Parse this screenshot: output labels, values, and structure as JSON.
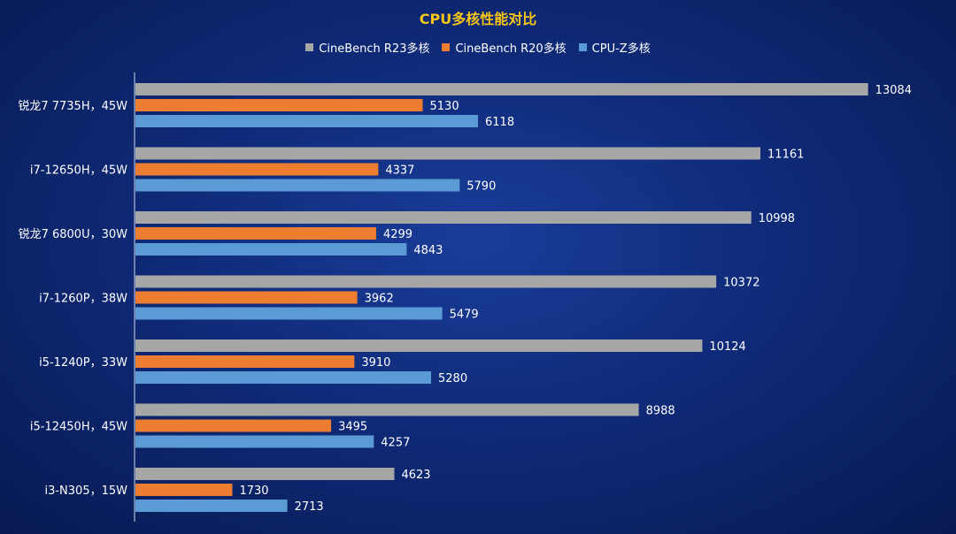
{
  "chart_data": {
    "type": "bar",
    "orientation": "horizontal",
    "title": "CPU多核性能对比",
    "categories": [
      "锐龙7 7735H，45W",
      "i7-12650H，45W",
      "锐龙7 6800U，30W",
      "i7-1260P，38W",
      "i5-1240P，33W",
      "i5-12450H，45W",
      "i3-N305，15W"
    ],
    "series": [
      {
        "name": "CineBench R23多核",
        "color": "#a6a6a6",
        "values": [
          13084,
          11161,
          10998,
          10372,
          10124,
          8988,
          4623
        ]
      },
      {
        "name": "CineBench R20多核",
        "color": "#ed7d31",
        "values": [
          5130,
          4337,
          4299,
          3962,
          3910,
          3495,
          1730
        ]
      },
      {
        "name": "CPU-Z多核",
        "color": "#5b9bd5",
        "values": [
          6118,
          5790,
          4843,
          5479,
          5280,
          4257,
          2713
        ]
      }
    ],
    "xlim": [
      0,
      13500
    ],
    "grid": false,
    "legend_position": "top"
  },
  "colors": {
    "title": "#f5c518",
    "text": "#ffffff",
    "axis": "#d0d8ee"
  }
}
